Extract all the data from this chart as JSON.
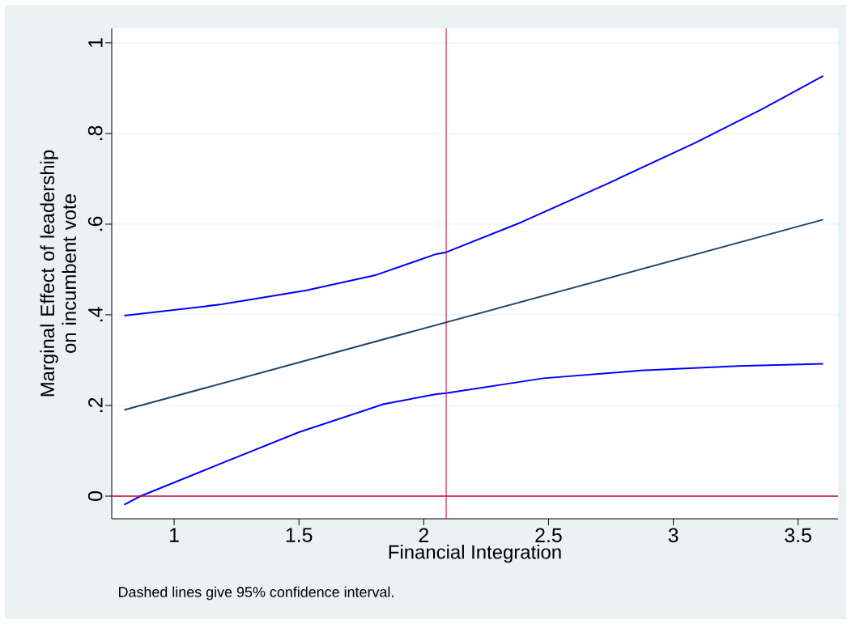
{
  "chart_data": {
    "type": "line",
    "xlabel": "Financial Integration",
    "ylabel": "Marginal Effect of leadership on incumbent vote",
    "annotations": [
      "Dashed lines give 95% confidence interval."
    ],
    "series": [
      {
        "type": "line",
        "color": "#0000ff",
        "x": [
          0.8,
          1.19,
          1.53,
          1.81,
          2.05,
          2.09,
          2.39,
          2.735,
          3.09,
          3.36,
          3.6
        ],
        "values": [
          0.398,
          0.423,
          0.454,
          0.488,
          0.534,
          0.538,
          0.604,
          0.689,
          0.78,
          0.855,
          0.927
        ]
      },
      {
        "type": "line",
        "color": "#1a476f",
        "x": [
          0.8,
          3.6
        ],
        "values": [
          0.19,
          0.61
        ]
      },
      {
        "type": "line",
        "color": "#0000ff",
        "x": [
          0.8,
          0.865,
          1.17,
          1.5,
          1.84,
          2.05,
          2.09,
          2.48,
          2.87,
          3.26,
          3.6
        ],
        "values": [
          -0.019,
          0.0,
          0.068,
          0.141,
          0.203,
          0.225,
          0.227,
          0.26,
          0.277,
          0.287,
          0.292
        ]
      }
    ],
    "xlim": [
      0.75,
      3.66
    ],
    "ylim": [
      -0.05,
      1.032
    ],
    "xticks": [
      1,
      1.5,
      2,
      2.5,
      3,
      3.5
    ],
    "yticks": [
      0,
      {
        "value": 0.2,
        "label": ".2"
      },
      {
        "value": 0.4,
        "label": ".4"
      },
      {
        "value": 0.6,
        "label": ".6"
      },
      {
        "value": 0.8,
        "label": ".8"
      },
      1
    ],
    "ref_lines": [
      {
        "axis": "y",
        "value": 0,
        "color": "#c10534"
      },
      {
        "axis": "x",
        "value": 2.09,
        "color": "#c10534"
      }
    ],
    "grid": "y",
    "line_style": "solid",
    "marker": "none"
  }
}
